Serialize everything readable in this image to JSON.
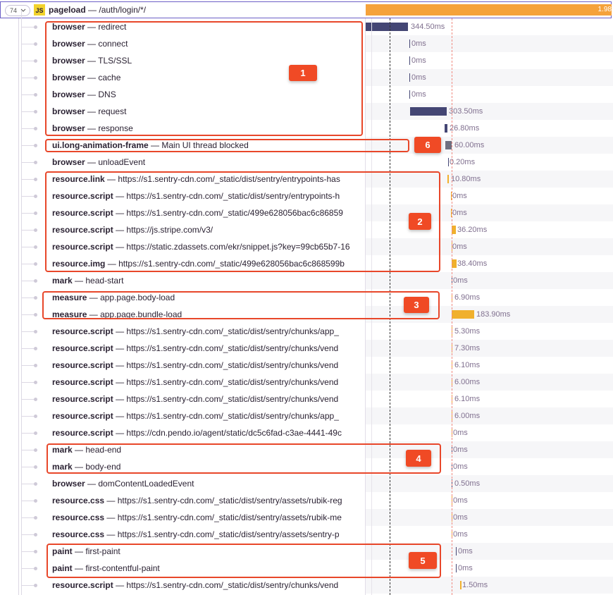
{
  "header": {
    "count": "74",
    "icon": "JS",
    "op": "pageload",
    "separator": "—",
    "description": "/auth/login/*/",
    "duration": "1.98"
  },
  "separator": "—",
  "rows": [
    {
      "op": "browser",
      "description": "redirect",
      "duration": "344.50ms"
    },
    {
      "op": "browser",
      "description": "connect",
      "duration": "0ms"
    },
    {
      "op": "browser",
      "description": "TLS/SSL",
      "duration": "0ms"
    },
    {
      "op": "browser",
      "description": "cache",
      "duration": "0ms"
    },
    {
      "op": "browser",
      "description": "DNS",
      "duration": "0ms"
    },
    {
      "op": "browser",
      "description": "request",
      "duration": "303.50ms"
    },
    {
      "op": "browser",
      "description": "response",
      "duration": "26.80ms"
    },
    {
      "op": "ui.long-animation-frame",
      "description": "Main UI thread blocked",
      "duration": "60.00ms"
    },
    {
      "op": "browser",
      "description": "unloadEvent",
      "duration": "0.20ms"
    },
    {
      "op": "resource.link",
      "description": "https://s1.sentry-cdn.com/_static/dist/sentry/entrypoints-has",
      "duration": "10.80ms"
    },
    {
      "op": "resource.script",
      "description": "https://s1.sentry-cdn.com/_static/dist/sentry/entrypoints-h",
      "duration": "0ms"
    },
    {
      "op": "resource.script",
      "description": "https://s1.sentry-cdn.com/_static/499e628056bac6c86859",
      "duration": "0ms"
    },
    {
      "op": "resource.script",
      "description": "https://js.stripe.com/v3/",
      "duration": "36.20ms"
    },
    {
      "op": "resource.script",
      "description": "https://static.zdassets.com/ekr/snippet.js?key=99cb65b7-16",
      "duration": "0ms"
    },
    {
      "op": "resource.img",
      "description": "https://s1.sentry-cdn.com/_static/499e628056bac6c868599b",
      "duration": "38.40ms"
    },
    {
      "op": "mark",
      "description": "head-start",
      "duration": "0ms"
    },
    {
      "op": "measure",
      "description": "app.page.body-load",
      "duration": "6.90ms"
    },
    {
      "op": "measure",
      "description": "app.page.bundle-load",
      "duration": "183.90ms"
    },
    {
      "op": "resource.script",
      "description": "https://s1.sentry-cdn.com/_static/dist/sentry/chunks/app_",
      "duration": "5.30ms"
    },
    {
      "op": "resource.script",
      "description": "https://s1.sentry-cdn.com/_static/dist/sentry/chunks/vend",
      "duration": "7.30ms"
    },
    {
      "op": "resource.script",
      "description": "https://s1.sentry-cdn.com/_static/dist/sentry/chunks/vend",
      "duration": "6.10ms"
    },
    {
      "op": "resource.script",
      "description": "https://s1.sentry-cdn.com/_static/dist/sentry/chunks/vend",
      "duration": "6.00ms"
    },
    {
      "op": "resource.script",
      "description": "https://s1.sentry-cdn.com/_static/dist/sentry/chunks/vend",
      "duration": "6.10ms"
    },
    {
      "op": "resource.script",
      "description": "https://s1.sentry-cdn.com/_static/dist/sentry/chunks/app_",
      "duration": "6.00ms"
    },
    {
      "op": "resource.script",
      "description": "https://cdn.pendo.io/agent/static/dc5c6fad-c3ae-4441-49c",
      "duration": "0ms"
    },
    {
      "op": "mark",
      "description": "head-end",
      "duration": "0ms"
    },
    {
      "op": "mark",
      "description": "body-end",
      "duration": "0ms"
    },
    {
      "op": "browser",
      "description": "domContentLoadedEvent",
      "duration": "0.50ms"
    },
    {
      "op": "resource.css",
      "description": "https://s1.sentry-cdn.com/_static/dist/sentry/assets/rubik-reg",
      "duration": "0ms"
    },
    {
      "op": "resource.css",
      "description": "https://s1.sentry-cdn.com/_static/dist/sentry/assets/rubik-me",
      "duration": "0ms"
    },
    {
      "op": "resource.css",
      "description": "https://s1.sentry-cdn.com/_static/dist/sentry/assets/sentry-p",
      "duration": "0ms"
    },
    {
      "op": "paint",
      "description": "first-paint",
      "duration": "0ms"
    },
    {
      "op": "paint",
      "description": "first-contentful-paint",
      "duration": "0ms"
    },
    {
      "op": "resource.script",
      "description": "https://s1.sentry-cdn.com/_static/dist/sentry/chunks/vend",
      "duration": "1.50ms"
    }
  ],
  "annotations": [
    {
      "label": "1"
    },
    {
      "label": "6"
    },
    {
      "label": "2"
    },
    {
      "label": "3"
    },
    {
      "label": "4"
    },
    {
      "label": "5"
    }
  ]
}
